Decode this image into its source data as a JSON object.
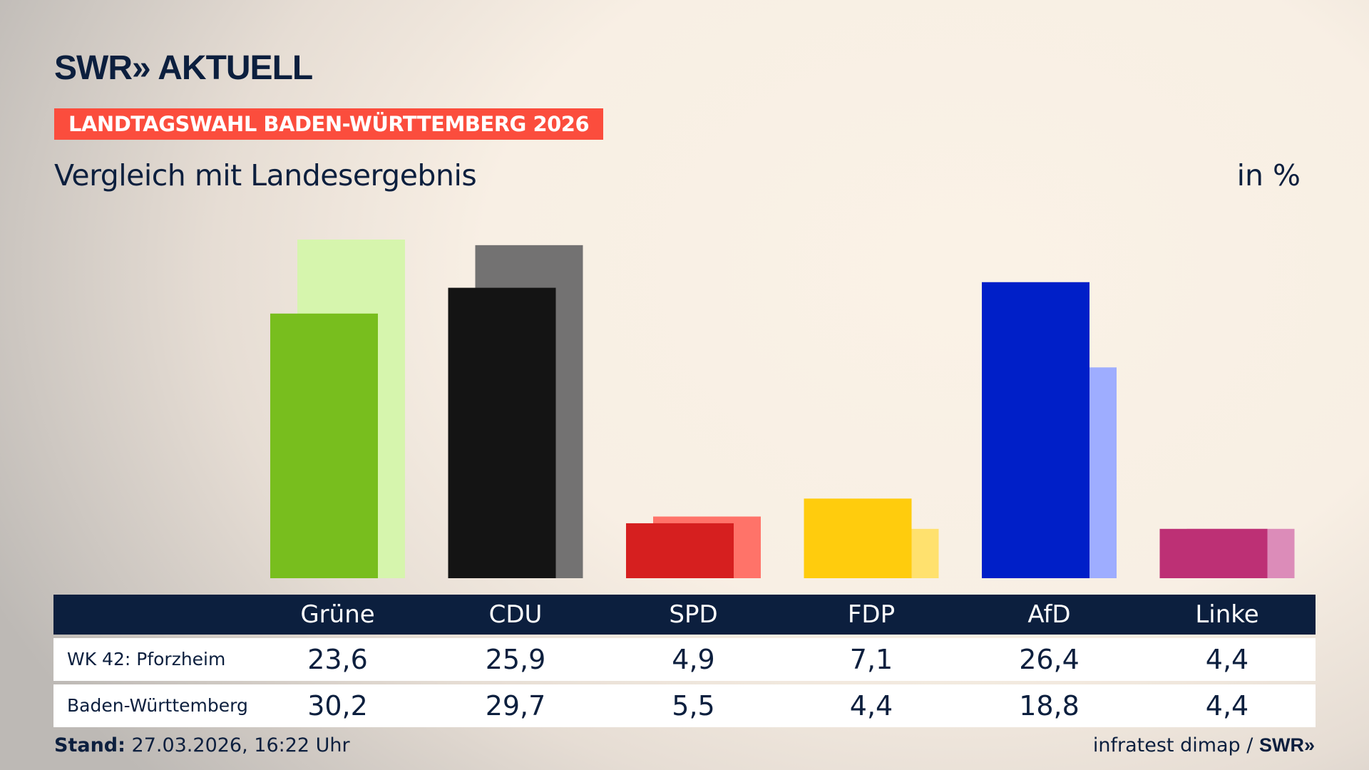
{
  "brand": {
    "logo": "SWR» AKTUELL",
    "source": "infratest dimap /",
    "source_logo": "SWR»"
  },
  "banner": "LANDTAGSWAHL BADEN-WÜRTTEMBERG 2026",
  "subtitle": "Vergleich mit Landesergebnis",
  "unit": "in %",
  "footer": {
    "stand_label": "Stand:",
    "stand_value": "27.03.2026, 16:22 Uhr"
  },
  "chart_data": {
    "type": "bar",
    "title": "Vergleich mit Landesergebnis",
    "ylabel": "in %",
    "ylim": [
      0,
      30.2
    ],
    "categories": [
      "Grüne",
      "CDU",
      "SPD",
      "FDP",
      "AfD",
      "Linke"
    ],
    "series": [
      {
        "name": "WK 42: Pforzheim",
        "values": [
          "23,6",
          "25,9",
          "4,9",
          "7,1",
          "26,4",
          "4,4"
        ],
        "colors": [
          "#78be1e",
          "#141414",
          "#d61f1f",
          "#ffcc0d",
          "#001fc8",
          "#bd3075"
        ]
      },
      {
        "name": "Baden-Württemberg",
        "values": [
          "30,2",
          "29,7",
          "5,5",
          "4,4",
          "18,8",
          "4,4"
        ],
        "colors": [
          "#d6f5ad",
          "#737272",
          "#ff7369",
          "#ffe16e",
          "#9eadff",
          "#dc8cb9"
        ]
      }
    ]
  }
}
